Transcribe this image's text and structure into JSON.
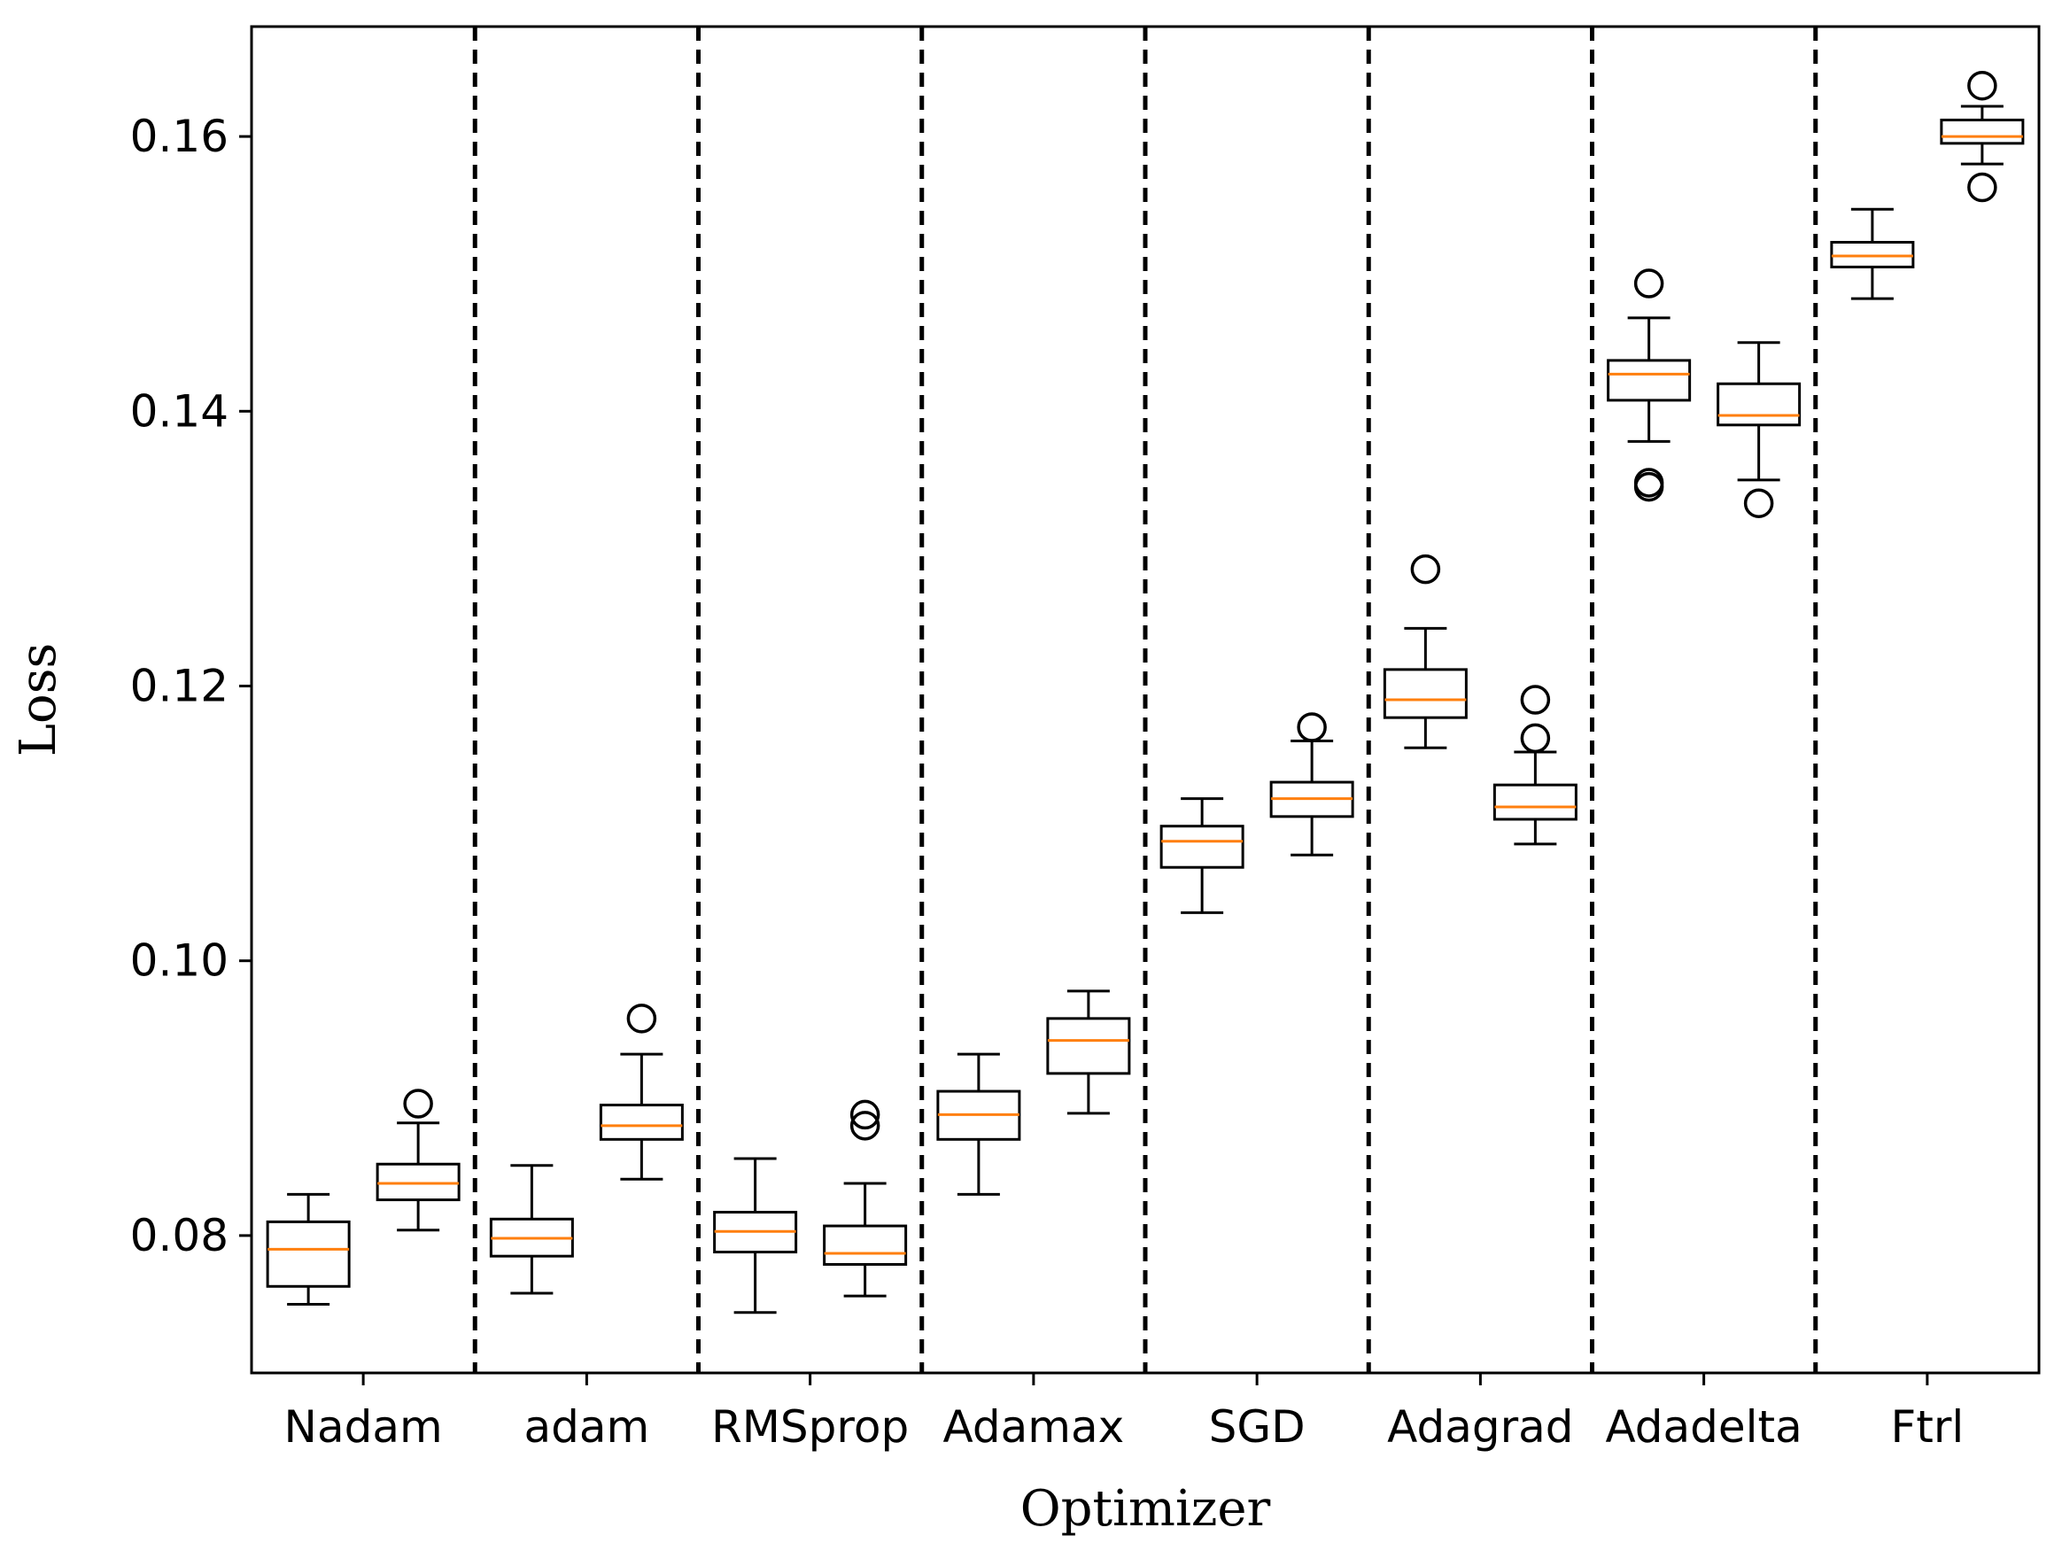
{
  "chart_data": {
    "type": "boxplot",
    "title": "",
    "xlabel": "Optimizer",
    "ylabel": "Loss",
    "ylim": [
      0.07,
      0.168
    ],
    "yticks": [
      0.08,
      0.1,
      0.12,
      0.14,
      0.16
    ],
    "ytick_labels": [
      "0.08",
      "0.10",
      "0.12",
      "0.14",
      "0.16"
    ],
    "categories": [
      "Nadam",
      "adam",
      "RMSprop",
      "Adamax",
      "SGD",
      "Adagrad",
      "Adadelta",
      "Ftrl"
    ],
    "boxes_per_category": 2,
    "separators": "dashed vertical line between groups",
    "boxes": [
      {
        "category": "Nadam",
        "index": 0,
        "whislo": 0.075,
        "q1": 0.0763,
        "median": 0.079,
        "q3": 0.081,
        "whishi": 0.083,
        "fliers": []
      },
      {
        "category": "Nadam",
        "index": 1,
        "whislo": 0.0804,
        "q1": 0.0826,
        "median": 0.0838,
        "q3": 0.0852,
        "whishi": 0.0882,
        "fliers": [
          0.0896
        ]
      },
      {
        "category": "adam",
        "index": 0,
        "whislo": 0.0758,
        "q1": 0.0785,
        "median": 0.0798,
        "q3": 0.0812,
        "whishi": 0.0851,
        "fliers": []
      },
      {
        "category": "adam",
        "index": 1,
        "whislo": 0.0841,
        "q1": 0.087,
        "median": 0.088,
        "q3": 0.0895,
        "whishi": 0.0932,
        "fliers": [
          0.0958
        ]
      },
      {
        "category": "RMSprop",
        "index": 0,
        "whislo": 0.0744,
        "q1": 0.0788,
        "median": 0.0803,
        "q3": 0.0817,
        "whishi": 0.0856,
        "fliers": []
      },
      {
        "category": "RMSprop",
        "index": 1,
        "whislo": 0.0756,
        "q1": 0.0779,
        "median": 0.0787,
        "q3": 0.0807,
        "whishi": 0.0838,
        "fliers": [
          0.088,
          0.0888
        ]
      },
      {
        "category": "Adamax",
        "index": 0,
        "whislo": 0.083,
        "q1": 0.087,
        "median": 0.0888,
        "q3": 0.0905,
        "whishi": 0.0932,
        "fliers": []
      },
      {
        "category": "Adamax",
        "index": 1,
        "whislo": 0.0889,
        "q1": 0.0918,
        "median": 0.0942,
        "q3": 0.0958,
        "whishi": 0.0978,
        "fliers": []
      },
      {
        "category": "SGD",
        "index": 0,
        "whislo": 0.1035,
        "q1": 0.1068,
        "median": 0.1087,
        "q3": 0.1098,
        "whishi": 0.1118,
        "fliers": []
      },
      {
        "category": "SGD",
        "index": 1,
        "whislo": 0.1077,
        "q1": 0.1105,
        "median": 0.1118,
        "q3": 0.113,
        "whishi": 0.116,
        "fliers": [
          0.117
        ]
      },
      {
        "category": "Adagrad",
        "index": 0,
        "whislo": 0.1155,
        "q1": 0.1177,
        "median": 0.119,
        "q3": 0.1212,
        "whishi": 0.1242,
        "fliers": [
          0.1285
        ]
      },
      {
        "category": "Adagrad",
        "index": 1,
        "whislo": 0.1085,
        "q1": 0.1103,
        "median": 0.1112,
        "q3": 0.1128,
        "whishi": 0.1152,
        "fliers": [
          0.1162,
          0.119
        ]
      },
      {
        "category": "Adadelta",
        "index": 0,
        "whislo": 0.1378,
        "q1": 0.1408,
        "median": 0.1427,
        "q3": 0.1437,
        "whishi": 0.1468,
        "fliers": [
          0.1345,
          0.1348,
          0.1493
        ]
      },
      {
        "category": "Adadelta",
        "index": 1,
        "whislo": 0.135,
        "q1": 0.139,
        "median": 0.1397,
        "q3": 0.142,
        "whishi": 0.145,
        "fliers": [
          0.1333
        ]
      },
      {
        "category": "Ftrl",
        "index": 0,
        "whislo": 0.1482,
        "q1": 0.1505,
        "median": 0.1513,
        "q3": 0.1523,
        "whishi": 0.1547,
        "fliers": []
      },
      {
        "category": "Ftrl",
        "index": 1,
        "whislo": 0.158,
        "q1": 0.1595,
        "median": 0.16,
        "q3": 0.1612,
        "whishi": 0.1622,
        "fliers": [
          0.1563,
          0.1637
        ]
      }
    ]
  },
  "colors": {
    "box": "#000000",
    "median": "#ff7f0e",
    "separator": "#000000",
    "background": "#ffffff"
  }
}
